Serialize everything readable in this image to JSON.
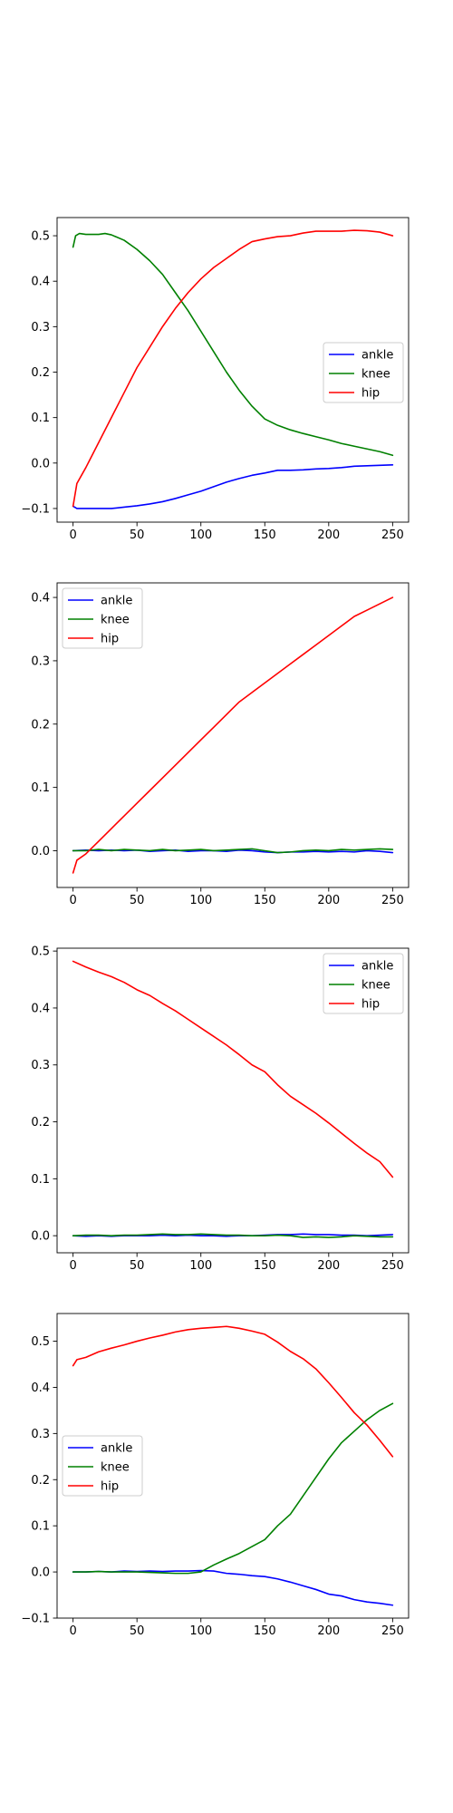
{
  "colors": {
    "ankle": "#0000ff",
    "knee": "#008000",
    "hip": "#ff0000"
  },
  "chart_data": [
    {
      "type": "line",
      "xlim": [
        -12.5,
        262.5
      ],
      "ylim": [
        -0.13,
        0.54
      ],
      "xticks": [
        0,
        50,
        100,
        150,
        200,
        250
      ],
      "xtick_labels": [
        "0",
        "50",
        "100",
        "150",
        "200",
        "250"
      ],
      "yticks": [
        -0.1,
        0.0,
        0.1,
        0.2,
        0.3,
        0.4,
        0.5
      ],
      "ytick_labels": [
        "−0.1",
        "0.0",
        "0.1",
        "0.2",
        "0.3",
        "0.4",
        "0.5"
      ],
      "legend_position": "center-right",
      "series": [
        {
          "name": "ankle",
          "color": "#0000ff",
          "x": [
            0,
            3,
            10,
            20,
            30,
            40,
            50,
            60,
            70,
            80,
            90,
            100,
            110,
            120,
            130,
            140,
            150,
            160,
            170,
            180,
            190,
            200,
            210,
            220,
            230,
            240,
            250
          ],
          "y": [
            -0.095,
            -0.1,
            -0.1,
            -0.1,
            -0.1,
            -0.097,
            -0.094,
            -0.09,
            -0.085,
            -0.078,
            -0.07,
            -0.062,
            -0.052,
            -0.042,
            -0.034,
            -0.027,
            -0.022,
            -0.016,
            -0.016,
            -0.015,
            -0.013,
            -0.012,
            -0.01,
            -0.007,
            -0.006,
            -0.005,
            -0.004
          ]
        },
        {
          "name": "knee",
          "color": "#008000",
          "x": [
            0,
            2,
            5,
            10,
            20,
            25,
            30,
            40,
            50,
            60,
            70,
            80,
            90,
            100,
            110,
            120,
            130,
            140,
            150,
            160,
            170,
            180,
            190,
            200,
            210,
            220,
            230,
            240,
            250
          ],
          "y": [
            0.475,
            0.5,
            0.505,
            0.503,
            0.503,
            0.505,
            0.502,
            0.49,
            0.47,
            0.445,
            0.415,
            0.375,
            0.335,
            0.29,
            0.245,
            0.2,
            0.16,
            0.125,
            0.097,
            0.083,
            0.073,
            0.065,
            0.058,
            0.051,
            0.043,
            0.037,
            0.031,
            0.025,
            0.017
          ]
        },
        {
          "name": "hip",
          "color": "#ff0000",
          "x": [
            0,
            3,
            10,
            20,
            30,
            40,
            50,
            60,
            70,
            80,
            90,
            100,
            110,
            120,
            130,
            140,
            150,
            160,
            170,
            180,
            190,
            200,
            210,
            220,
            230,
            240,
            250
          ],
          "y": [
            -0.095,
            -0.045,
            -0.01,
            0.045,
            0.1,
            0.155,
            0.21,
            0.255,
            0.3,
            0.34,
            0.375,
            0.405,
            0.43,
            0.45,
            0.47,
            0.487,
            0.493,
            0.498,
            0.5,
            0.506,
            0.51,
            0.51,
            0.51,
            0.512,
            0.511,
            0.508,
            0.5
          ]
        }
      ]
    },
    {
      "type": "line",
      "xlim": [
        -12.5,
        262.5
      ],
      "ylim": [
        -0.058,
        0.423
      ],
      "xticks": [
        0,
        50,
        100,
        150,
        200,
        250
      ],
      "xtick_labels": [
        "0",
        "50",
        "100",
        "150",
        "200",
        "250"
      ],
      "yticks": [
        0.0,
        0.1,
        0.2,
        0.3,
        0.4
      ],
      "ytick_labels": [
        "0.0",
        "0.1",
        "0.2",
        "0.3",
        "0.4"
      ],
      "legend_position": "top-left",
      "series": [
        {
          "name": "ankle",
          "color": "#0000ff",
          "x": [
            0,
            10,
            20,
            30,
            40,
            50,
            60,
            70,
            80,
            90,
            100,
            110,
            120,
            130,
            140,
            150,
            160,
            170,
            180,
            190,
            200,
            210,
            220,
            230,
            240,
            250
          ],
          "y": [
            0.0,
            0.001,
            0.0,
            0.001,
            0.0,
            0.001,
            -0.001,
            0.0,
            0.001,
            -0.001,
            0.0,
            0.0,
            -0.001,
            0.001,
            0.0,
            -0.002,
            -0.003,
            -0.002,
            -0.002,
            -0.001,
            -0.002,
            -0.001,
            -0.002,
            0.0,
            -0.001,
            -0.003
          ]
        },
        {
          "name": "knee",
          "color": "#008000",
          "x": [
            0,
            10,
            20,
            30,
            40,
            50,
            60,
            70,
            80,
            90,
            100,
            110,
            120,
            130,
            140,
            150,
            160,
            170,
            180,
            190,
            200,
            210,
            220,
            230,
            240,
            250
          ],
          "y": [
            0.0,
            0.0,
            0.002,
            0.0,
            0.002,
            0.001,
            0.0,
            0.002,
            0.0,
            0.001,
            0.002,
            0.0,
            0.001,
            0.002,
            0.003,
            0.0,
            -0.003,
            -0.002,
            0.0,
            0.001,
            0.0,
            0.002,
            0.001,
            0.002,
            0.003,
            0.002
          ]
        },
        {
          "name": "hip",
          "color": "#ff0000",
          "x": [
            0,
            3,
            10,
            20,
            30,
            40,
            50,
            60,
            70,
            80,
            90,
            100,
            110,
            120,
            130,
            140,
            150,
            160,
            170,
            180,
            190,
            200,
            210,
            220,
            230,
            240,
            250
          ],
          "y": [
            -0.035,
            -0.015,
            -0.005,
            0.015,
            0.035,
            0.055,
            0.075,
            0.095,
            0.115,
            0.135,
            0.155,
            0.175,
            0.195,
            0.215,
            0.235,
            0.25,
            0.265,
            0.28,
            0.295,
            0.31,
            0.325,
            0.34,
            0.355,
            0.37,
            0.38,
            0.39,
            0.4
          ]
        }
      ]
    },
    {
      "type": "line",
      "xlim": [
        -12.5,
        262.5
      ],
      "ylim": [
        -0.03,
        0.505
      ],
      "xticks": [
        0,
        50,
        100,
        150,
        200,
        250
      ],
      "xtick_labels": [
        "0",
        "50",
        "100",
        "150",
        "200",
        "250"
      ],
      "yticks": [
        0.0,
        0.1,
        0.2,
        0.3,
        0.4,
        0.5
      ],
      "ytick_labels": [
        "0.0",
        "0.1",
        "0.2",
        "0.3",
        "0.4",
        "0.5"
      ],
      "legend_position": "top-right",
      "series": [
        {
          "name": "ankle",
          "color": "#0000ff",
          "x": [
            0,
            10,
            20,
            30,
            40,
            50,
            60,
            70,
            80,
            90,
            100,
            110,
            120,
            130,
            140,
            150,
            160,
            170,
            180,
            190,
            200,
            210,
            220,
            230,
            240,
            250
          ],
          "y": [
            0.0,
            -0.001,
            0.0,
            -0.001,
            0.0,
            0.0,
            0.0,
            0.001,
            0.0,
            0.001,
            0.0,
            0.0,
            -0.001,
            0.0,
            0.0,
            0.001,
            0.002,
            0.002,
            0.003,
            0.002,
            0.002,
            0.001,
            0.001,
            0.0,
            0.001,
            0.002
          ]
        },
        {
          "name": "knee",
          "color": "#008000",
          "x": [
            0,
            10,
            20,
            30,
            40,
            50,
            60,
            70,
            80,
            90,
            100,
            110,
            120,
            130,
            140,
            150,
            160,
            170,
            180,
            190,
            200,
            210,
            220,
            230,
            240,
            250
          ],
          "y": [
            0.0,
            0.001,
            0.001,
            0.0,
            0.001,
            0.001,
            0.002,
            0.003,
            0.002,
            0.002,
            0.003,
            0.002,
            0.001,
            0.001,
            0.0,
            0.0,
            0.001,
            0.0,
            -0.003,
            -0.002,
            -0.003,
            -0.002,
            0.0,
            -0.001,
            -0.002,
            -0.002
          ]
        },
        {
          "name": "hip",
          "color": "#ff0000",
          "x": [
            0,
            10,
            20,
            30,
            40,
            50,
            60,
            70,
            80,
            90,
            100,
            110,
            120,
            130,
            140,
            150,
            160,
            170,
            180,
            190,
            200,
            210,
            220,
            230,
            240,
            250
          ],
          "y": [
            0.482,
            0.472,
            0.463,
            0.455,
            0.445,
            0.432,
            0.422,
            0.408,
            0.395,
            0.38,
            0.365,
            0.35,
            0.335,
            0.318,
            0.3,
            0.288,
            0.265,
            0.245,
            0.23,
            0.215,
            0.198,
            0.18,
            0.162,
            0.145,
            0.13,
            0.103
          ]
        }
      ]
    },
    {
      "type": "line",
      "xlim": [
        -12.5,
        262.5
      ],
      "ylim": [
        -0.1,
        0.56
      ],
      "xticks": [
        0,
        50,
        100,
        150,
        200,
        250
      ],
      "xtick_labels": [
        "0",
        "50",
        "100",
        "150",
        "200",
        "250"
      ],
      "yticks": [
        -0.1,
        0.0,
        0.1,
        0.2,
        0.3,
        0.4,
        0.5
      ],
      "ytick_labels": [
        "−0.1",
        "0.0",
        "0.1",
        "0.2",
        "0.3",
        "0.4",
        "0.5"
      ],
      "legend_position": "center-left",
      "series": [
        {
          "name": "ankle",
          "color": "#0000ff",
          "x": [
            0,
            10,
            20,
            30,
            40,
            50,
            60,
            70,
            80,
            90,
            100,
            110,
            120,
            130,
            140,
            150,
            160,
            170,
            180,
            190,
            200,
            210,
            220,
            230,
            240,
            250
          ],
          "y": [
            0.0,
            0.0,
            0.001,
            0.0,
            0.002,
            0.001,
            0.002,
            0.001,
            0.002,
            0.002,
            0.003,
            0.002,
            -0.003,
            -0.005,
            -0.008,
            -0.01,
            -0.015,
            -0.022,
            -0.03,
            -0.038,
            -0.048,
            -0.052,
            -0.06,
            -0.065,
            -0.068,
            -0.072
          ]
        },
        {
          "name": "knee",
          "color": "#008000",
          "x": [
            0,
            10,
            20,
            30,
            40,
            50,
            60,
            70,
            80,
            90,
            100,
            110,
            120,
            130,
            140,
            150,
            160,
            170,
            180,
            190,
            200,
            210,
            220,
            230,
            240,
            250
          ],
          "y": [
            0.0,
            0.0,
            0.001,
            0.0,
            0.0,
            0.0,
            -0.001,
            -0.002,
            -0.003,
            -0.003,
            0.0,
            0.015,
            0.028,
            0.04,
            0.055,
            0.07,
            0.1,
            0.125,
            0.165,
            0.205,
            0.245,
            0.28,
            0.305,
            0.33,
            0.35,
            0.365
          ]
        },
        {
          "name": "hip",
          "color": "#ff0000",
          "x": [
            0,
            3,
            10,
            20,
            30,
            40,
            50,
            60,
            70,
            80,
            90,
            100,
            110,
            120,
            130,
            140,
            150,
            160,
            170,
            180,
            190,
            200,
            210,
            220,
            230,
            240,
            250
          ],
          "y": [
            0.447,
            0.46,
            0.465,
            0.477,
            0.485,
            0.492,
            0.5,
            0.507,
            0.513,
            0.52,
            0.525,
            0.528,
            0.53,
            0.532,
            0.528,
            0.522,
            0.515,
            0.498,
            0.478,
            0.462,
            0.44,
            0.41,
            0.378,
            0.345,
            0.318,
            0.285,
            0.25
          ]
        }
      ]
    }
  ]
}
